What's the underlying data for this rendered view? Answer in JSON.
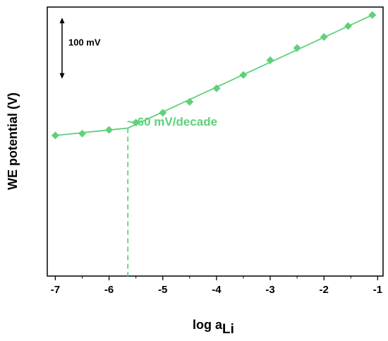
{
  "chart_data": {
    "type": "line",
    "xlabel_main": "log a",
    "xlabel_sub": "Li",
    "ylabel": "WE potential (V)",
    "xlim": [
      -7.15,
      -0.9
    ],
    "x_ticks": [
      -7,
      -6,
      -5,
      -4,
      -3,
      -2,
      -1
    ],
    "y_unit_mV": true,
    "ylim_mV": [
      -230,
      210
    ],
    "scale_bar_label": "100 mV",
    "scale_bar_mV": 100,
    "annotation": "~ 60 mV/decade",
    "series": [
      {
        "name": "",
        "color": "#5ed17a",
        "points": [
          {
            "x": -7.0,
            "y": 0
          },
          {
            "x": -6.5,
            "y": 3
          },
          {
            "x": -6.0,
            "y": 9
          },
          {
            "x": -5.5,
            "y": 21
          },
          {
            "x": -5.0,
            "y": 37
          },
          {
            "x": -4.5,
            "y": 55
          },
          {
            "x": -4.0,
            "y": 77
          },
          {
            "x": -3.5,
            "y": 99
          },
          {
            "x": -3.0,
            "y": 123
          },
          {
            "x": -2.5,
            "y": 143
          },
          {
            "x": -2.0,
            "y": 161
          },
          {
            "x": -1.55,
            "y": 179
          },
          {
            "x": -1.1,
            "y": 197
          }
        ]
      }
    ],
    "fit_lines": [
      {
        "points": [
          {
            "x": -7.0,
            "y": 0
          },
          {
            "x": -5.65,
            "y": 12
          }
        ]
      },
      {
        "points": [
          {
            "x": -5.65,
            "y": 12
          },
          {
            "x": -1.1,
            "y": 197
          }
        ]
      }
    ],
    "breakpoint_x": -5.65
  }
}
